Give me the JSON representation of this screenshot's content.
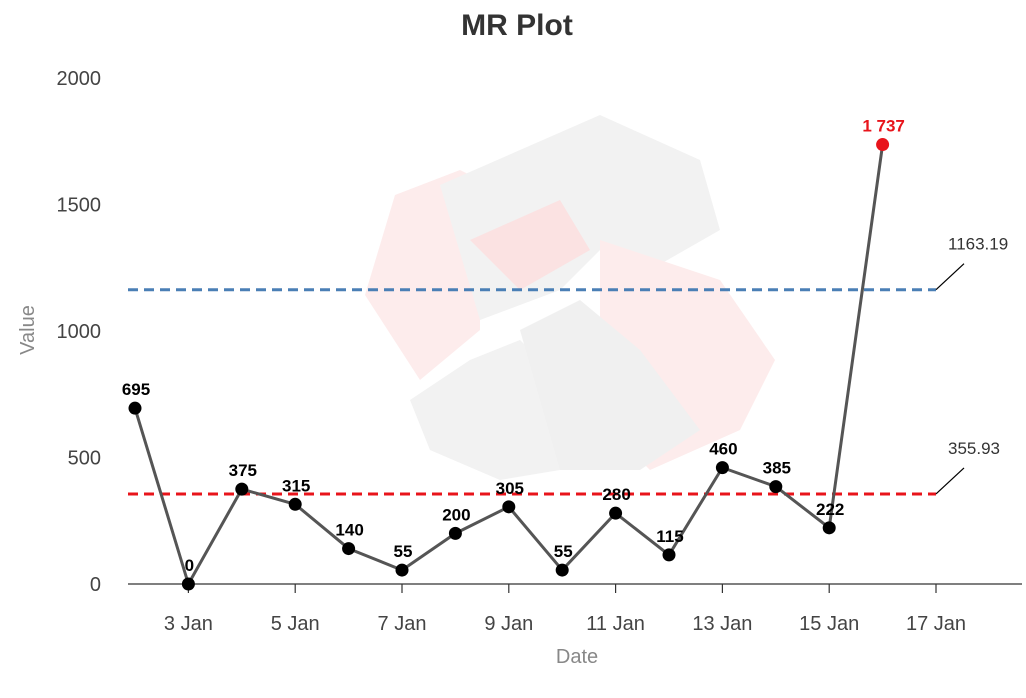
{
  "chart_data": {
    "type": "line",
    "title": "MR Plot",
    "xlabel": "Date",
    "ylabel": "Value",
    "ylim": [
      0,
      2000
    ],
    "yticks": [
      0,
      500,
      1000,
      1500,
      2000
    ],
    "xlim": [
      "2024-01-02",
      "2024-01-18"
    ],
    "xticks": [
      {
        "date": "2024-01-03",
        "label": "3 Jan"
      },
      {
        "date": "2024-01-05",
        "label": "5 Jan"
      },
      {
        "date": "2024-01-07",
        "label": "7 Jan"
      },
      {
        "date": "2024-01-09",
        "label": "9 Jan"
      },
      {
        "date": "2024-01-11",
        "label": "11 Jan"
      },
      {
        "date": "2024-01-13",
        "label": "13 Jan"
      },
      {
        "date": "2024-01-15",
        "label": "15 Jan"
      },
      {
        "date": "2024-01-17",
        "label": "17 Jan"
      }
    ],
    "grid": false,
    "series": [
      {
        "points": [
          {
            "x": "2024-01-02",
            "y": 695,
            "label": "695"
          },
          {
            "x": "2024-01-03",
            "y": 0,
            "label": "0"
          },
          {
            "x": "2024-01-04",
            "y": 375,
            "label": "375"
          },
          {
            "x": "2024-01-05",
            "y": 315,
            "label": "315"
          },
          {
            "x": "2024-01-06",
            "y": 140,
            "label": "140"
          },
          {
            "x": "2024-01-07",
            "y": 55,
            "label": "55"
          },
          {
            "x": "2024-01-08",
            "y": 200,
            "label": "200"
          },
          {
            "x": "2024-01-09",
            "y": 305,
            "label": "305"
          },
          {
            "x": "2024-01-10",
            "y": 55,
            "label": "55"
          },
          {
            "x": "2024-01-11",
            "y": 280,
            "label": "280"
          },
          {
            "x": "2024-01-12",
            "y": 115,
            "label": "115"
          },
          {
            "x": "2024-01-13",
            "y": 460,
            "label": "460"
          },
          {
            "x": "2024-01-14",
            "y": 385,
            "label": "385"
          },
          {
            "x": "2024-01-15",
            "y": 222,
            "label": "222"
          },
          {
            "x": "2024-01-16",
            "y": 1737,
            "label": "1 737",
            "alert": true
          }
        ]
      }
    ],
    "reference_lines": [
      {
        "value": 1163.19,
        "label": "1163.19",
        "color": "#4a7fb5",
        "end": "2024-01-17"
      },
      {
        "value": 355.93,
        "label": "355.93",
        "color": "#e8141b",
        "end": "2024-01-17"
      }
    ],
    "colors": {
      "line": "#555555",
      "marker": "#000000",
      "alert_marker": "#e8141b",
      "alert_label": "#e8141b",
      "watermark_gray": "#f0f0f0",
      "watermark_red": "#fde8e8"
    }
  }
}
